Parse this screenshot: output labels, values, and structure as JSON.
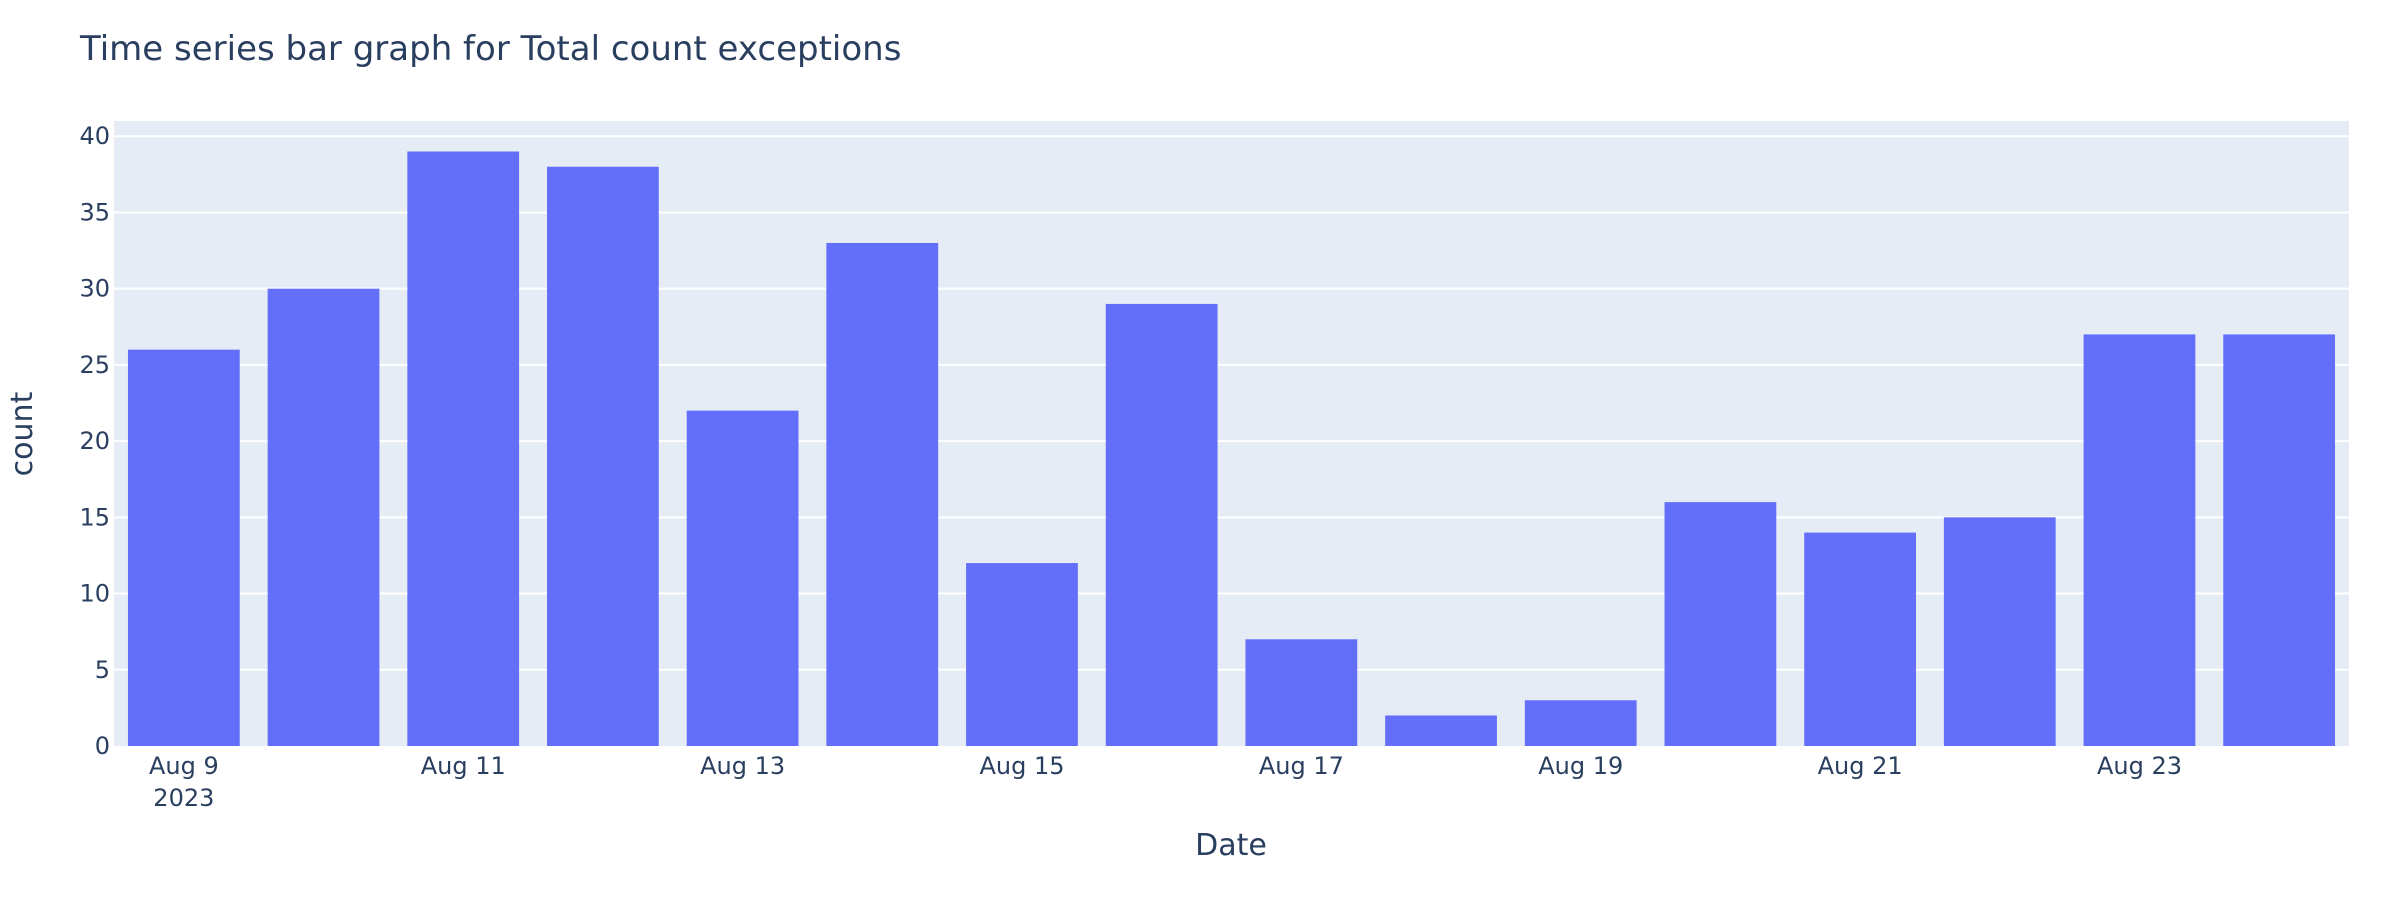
{
  "chart_data": {
    "type": "bar",
    "title": "Time series bar graph for Total count exceptions",
    "xlabel": "Date",
    "ylabel": "count",
    "x": [
      "2023-08-09",
      "2023-08-10",
      "2023-08-11",
      "2023-08-12",
      "2023-08-13",
      "2023-08-14",
      "2023-08-15",
      "2023-08-16",
      "2023-08-17",
      "2023-08-18",
      "2023-08-19",
      "2023-08-20",
      "2023-08-21",
      "2023-08-22",
      "2023-08-23",
      "2023-08-24"
    ],
    "values": [
      26,
      30,
      39,
      38,
      22,
      33,
      12,
      29,
      7,
      2,
      3,
      16,
      14,
      15,
      27,
      27
    ],
    "ylim": [
      0,
      41
    ],
    "yticks": [
      "0",
      "5",
      "10",
      "15",
      "20",
      "25",
      "30",
      "35",
      "40"
    ],
    "xticks": [
      {
        "date": "2023-08-09",
        "label": "Aug 9",
        "sublabel": "2023"
      },
      {
        "date": "2023-08-11",
        "label": "Aug 11"
      },
      {
        "date": "2023-08-13",
        "label": "Aug 13"
      },
      {
        "date": "2023-08-15",
        "label": "Aug 15"
      },
      {
        "date": "2023-08-17",
        "label": "Aug 17"
      },
      {
        "date": "2023-08-19",
        "label": "Aug 19"
      },
      {
        "date": "2023-08-21",
        "label": "Aug 21"
      },
      {
        "date": "2023-08-23",
        "label": "Aug 23"
      }
    ],
    "grid": true,
    "colors": {
      "bar": "#636efa",
      "plot_background": "#e5ecf6",
      "grid": "#ffffff",
      "text": "#2a3f5f"
    }
  }
}
